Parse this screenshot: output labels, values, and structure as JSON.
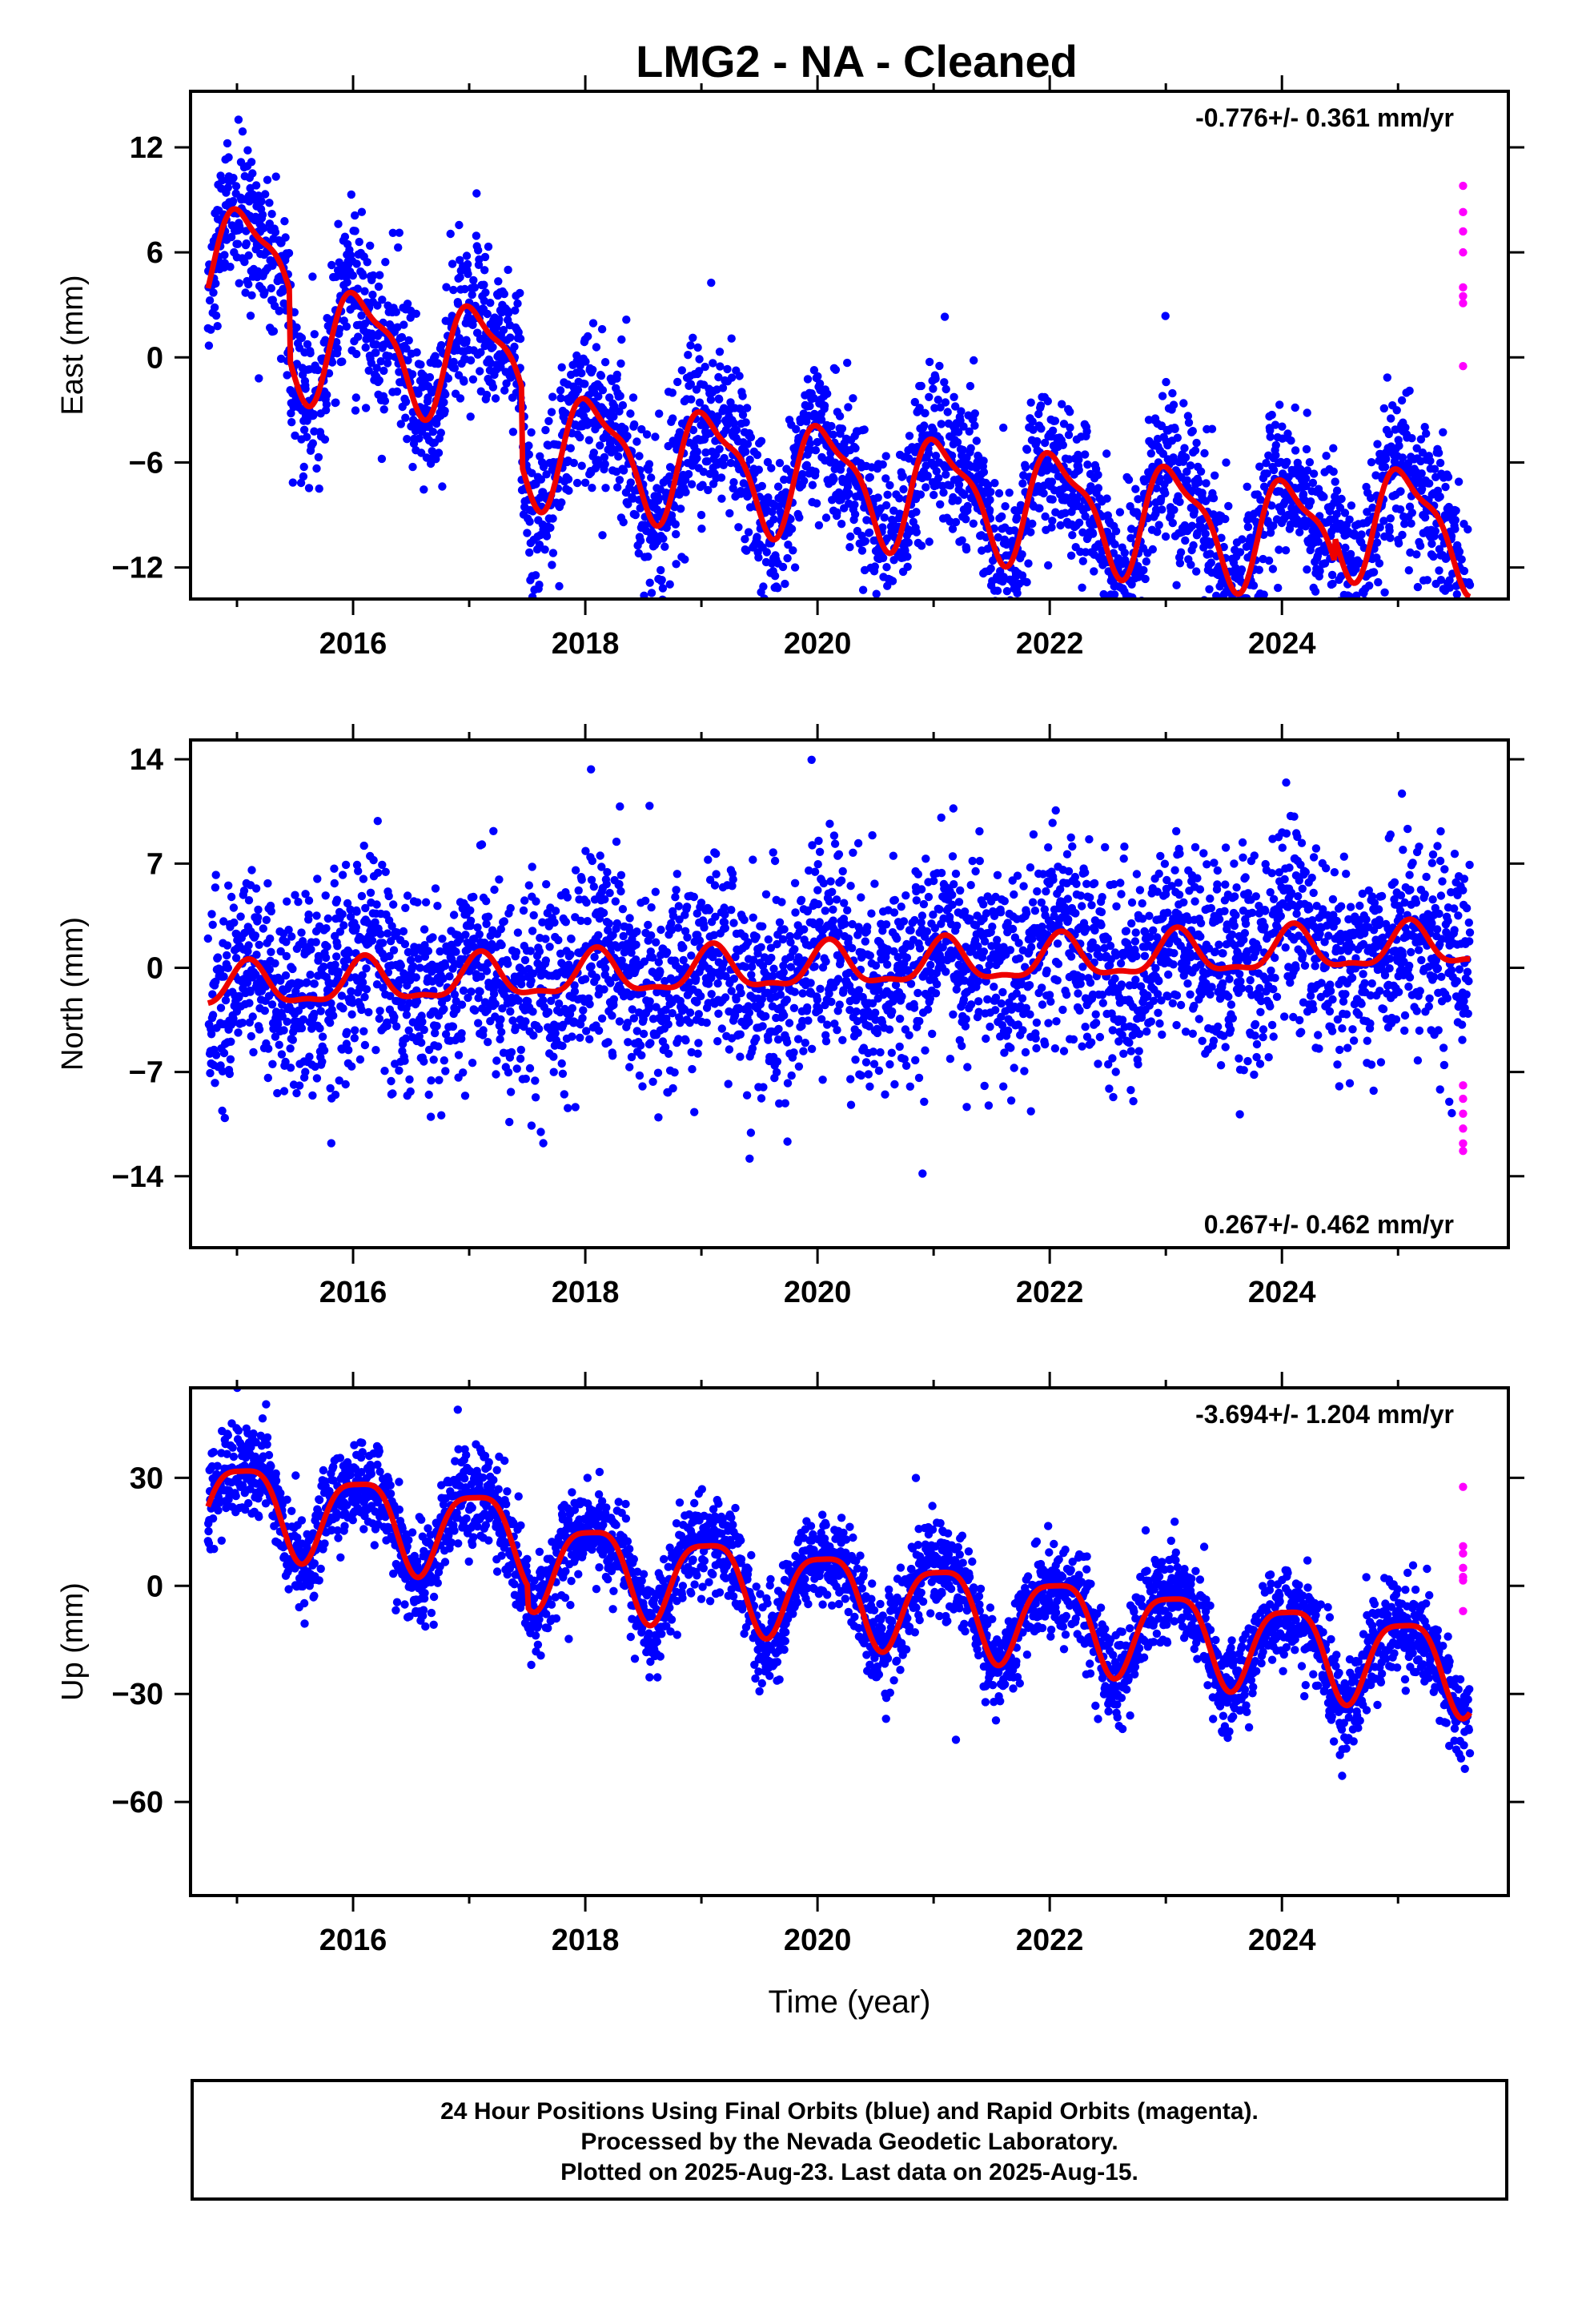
{
  "title": "LMG2  - NA - Cleaned",
  "footer": {
    "line1": "24 Hour Positions Using Final Orbits (blue) and Rapid Orbits (magenta).",
    "line2": "Processed by the Nevada Geodetic Laboratory.",
    "line3": "Plotted on 2025-Aug-23. Last data on 2025-Aug-15."
  },
  "colors": {
    "final": "#0000ff",
    "rapid": "#ff00ff",
    "model": "#ee0000",
    "frame": "#000000"
  },
  "chart_data": [
    {
      "type": "scatter",
      "component": "East",
      "ylabel": "East (mm)",
      "xlabel": "",
      "xlim": [
        2014.6,
        2025.95
      ],
      "ylim": [
        -13.8,
        15.2
      ],
      "xticks": [
        2016,
        2018,
        2020,
        2022,
        2024
      ],
      "yticks": [
        -12,
        -6,
        0,
        6,
        12
      ],
      "rate_text": "-0.776+/- 0.361 mm/yr",
      "rate_position": "top-right",
      "series": [
        {
          "role": "final",
          "model": {
            "start": 2014.75,
            "end": 2025.62,
            "v0": 5.7,
            "rate": -0.776,
            "amp1": 3.0,
            "phase1": 0.08,
            "amp2": 1.0,
            "phase2": 0.9,
            "steps": [
              [
                2015.45,
                -4.0
              ],
              [
                2017.45,
                -4.5
              ],
              [
                2024.45,
                1.4
              ]
            ]
          },
          "noise": 2.2
        },
        {
          "role": "rapid",
          "x": [
            2025.56,
            2025.56,
            2025.56,
            2025.56,
            2025.56,
            2025.56,
            2025.56,
            2025.56
          ],
          "y": [
            9.8,
            8.3,
            7.2,
            6.0,
            4.0,
            3.5,
            3.1,
            -0.5
          ]
        }
      ]
    },
    {
      "type": "scatter",
      "component": "North",
      "ylabel": "North (mm)",
      "xlabel": "",
      "xlim": [
        2014.6,
        2025.95
      ],
      "ylim": [
        -18.8,
        15.3
      ],
      "xticks": [
        2016,
        2018,
        2020,
        2022,
        2024
      ],
      "yticks": [
        -14,
        -7,
        0,
        7,
        14
      ],
      "rate_text": "0.267+/- 0.462 mm/yr",
      "rate_position": "bottom-right",
      "series": [
        {
          "role": "final",
          "model": {
            "start": 2014.75,
            "end": 2025.62,
            "v0": -1.4,
            "rate": 0.267,
            "amp1": 1.4,
            "phase1": 0.1,
            "amp2": 0.5,
            "phase2": 0.6,
            "steps": []
          },
          "noise": 3.4
        },
        {
          "role": "rapid",
          "x": [
            2025.56,
            2025.56,
            2025.56,
            2025.56,
            2025.56,
            2025.56
          ],
          "y": [
            -7.9,
            -8.8,
            -9.8,
            -10.8,
            -11.8,
            -12.3
          ]
        }
      ]
    },
    {
      "type": "scatter",
      "component": "Up",
      "ylabel": "Up (mm)",
      "xlabel": "Time (year)",
      "xlim": [
        2014.6,
        2025.95
      ],
      "ylim": [
        -86,
        55
      ],
      "xticks": [
        2016,
        2018,
        2020,
        2022,
        2024
      ],
      "yticks": [
        -60,
        -30,
        0,
        30
      ],
      "rate_text": "-3.694+/- 1.204 mm/yr",
      "rate_position": "top-right",
      "series": [
        {
          "role": "final",
          "model": {
            "start": 2014.75,
            "end": 2025.62,
            "v0": 24.0,
            "rate": -3.694,
            "amp1": 12.0,
            "phase1": 0.06,
            "amp2": 3.0,
            "phase2": 0.8,
            "steps": [
              [
                2017.5,
                -6.0
              ]
            ]
          },
          "noise": 6.5
        },
        {
          "role": "rapid",
          "x": [
            2025.56,
            2025.56,
            2025.56,
            2025.56,
            2025.56,
            2025.56,
            2025.56
          ],
          "y": [
            27.5,
            11.0,
            9.0,
            5.0,
            2.5,
            1.5,
            -7.0
          ]
        }
      ]
    }
  ]
}
